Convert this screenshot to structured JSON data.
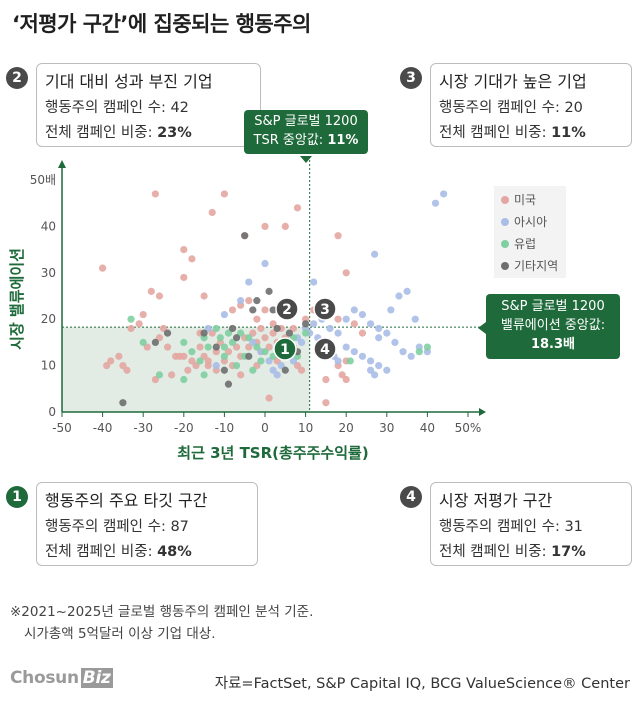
{
  "title": "‘저평가 구간’에 집중되는 행동주의",
  "boxes": {
    "b2": {
      "num": "2",
      "heading": "기대 대비 성과 부진 기업",
      "count_label": "행동주의 캠페인 수: ",
      "count": "42",
      "share_label": "전체 캠페인 비중: ",
      "share": "23%"
    },
    "b3": {
      "num": "3",
      "heading": "시장 기대가 높은 기업",
      "count_label": "행동주의 캠페인 수: ",
      "count": "20",
      "share_label": "전체 캠페인 비중: ",
      "share": "11%"
    },
    "b1": {
      "num": "1",
      "heading": "행동주의 주요 타깃 구간",
      "count_label": "행동주의 캠페인 수: ",
      "count": "87",
      "share_label": "전체 캠페인 비중: ",
      "share": "48%"
    },
    "b4": {
      "num": "4",
      "heading": "시장 저평가 구간",
      "count_label": "행동주의 캠페인 수: ",
      "count": "31",
      "share_label": "전체 캠페인 비중: ",
      "share": "17%"
    }
  },
  "callout_tsr": {
    "line1": "S&P 글로벌 1200",
    "line2": "TSR 중앙값: ",
    "value": "11%"
  },
  "callout_val": {
    "line1": "S&P 글로벌 1200",
    "line2": "밸류에이션 중앙값:",
    "value": "18.3배"
  },
  "note_line1": "※2021~2025년 글로벌 행동주의 캠페인 분석 기준.",
  "note_line2": "시가총액 5억달러 이상 기업 대상.",
  "logo_text": "Chosun",
  "logo_biz": "Biz",
  "source": "자료=FactSet, S&P Capital IQ, BCG ValueScience® Center",
  "colors": {
    "us": "#e3a6a1",
    "asia": "#a9bde6",
    "europe": "#7fcfa1",
    "other": "#6e6e6e",
    "accent": "#1f6a3a"
  },
  "chart_data": {
    "type": "scatter",
    "xlabel": "최근 3년 TSR(총주주수익률)",
    "ylabel": "시장 밸류에이션",
    "xlim": [
      -50,
      50
    ],
    "ylim": [
      0,
      50
    ],
    "x_ticks": [
      "-50",
      "-40",
      "-30",
      "-20",
      "-10",
      "0",
      "10",
      "20",
      "30",
      "40",
      "50%"
    ],
    "y_ticks": [
      "0",
      "10",
      "20",
      "30",
      "40",
      "50배"
    ],
    "median_x": 11,
    "median_y": 18.3,
    "quadrant_markers": [
      "1",
      "2",
      "3",
      "4"
    ],
    "series": [
      {
        "name": "미국",
        "color_key": "us",
        "points": [
          [
            -27,
            47
          ],
          [
            -20,
            35
          ],
          [
            -18,
            33
          ],
          [
            -20,
            29
          ],
          [
            -15,
            25
          ],
          [
            -13,
            43
          ],
          [
            -10,
            47
          ],
          [
            -5,
            38
          ],
          [
            0,
            40
          ],
          [
            5,
            40
          ],
          [
            8,
            44
          ],
          [
            20,
            30
          ],
          [
            18,
            38
          ],
          [
            18,
            20
          ],
          [
            20,
            11
          ],
          [
            15,
            2
          ],
          [
            -40,
            31
          ],
          [
            -28,
            26
          ],
          [
            -26,
            25
          ],
          [
            -33,
            18
          ],
          [
            -31,
            19
          ],
          [
            -29,
            14
          ],
          [
            -26,
            16
          ],
          [
            -24,
            14
          ],
          [
            -22,
            12
          ],
          [
            -20,
            12
          ],
          [
            -18,
            11
          ],
          [
            -16,
            14
          ],
          [
            -15,
            12
          ],
          [
            -14,
            10
          ],
          [
            -13,
            17
          ],
          [
            -12,
            9
          ],
          [
            -11,
            15
          ],
          [
            -10,
            11
          ],
          [
            -9,
            13
          ],
          [
            -8,
            10
          ],
          [
            -7,
            14
          ],
          [
            -6,
            12
          ],
          [
            -5,
            16
          ],
          [
            -4,
            14
          ],
          [
            -3,
            17
          ],
          [
            -2,
            15
          ],
          [
            -1,
            13
          ],
          [
            0,
            16
          ],
          [
            1,
            14
          ],
          [
            2,
            17
          ],
          [
            3,
            15
          ],
          [
            4,
            18
          ],
          [
            5,
            16
          ],
          [
            6,
            12
          ],
          [
            7,
            14
          ],
          [
            8,
            10
          ],
          [
            9,
            9
          ],
          [
            -36,
            12
          ],
          [
            -35,
            10
          ],
          [
            -34,
            9
          ],
          [
            -38,
            11
          ],
          [
            -39,
            10
          ],
          [
            -27,
            7
          ],
          [
            -23,
            8
          ],
          [
            -17,
            10
          ],
          [
            -19,
            9
          ],
          [
            -6,
            8
          ],
          [
            -2,
            10
          ],
          [
            1,
            3
          ],
          [
            -8,
            22
          ],
          [
            -6,
            23
          ],
          [
            -4,
            24
          ],
          [
            -2,
            20
          ],
          [
            0,
            22
          ],
          [
            2,
            19
          ],
          [
            10,
            20
          ],
          [
            12,
            22
          ],
          [
            14,
            23
          ],
          [
            16,
            21
          ],
          [
            22,
            19
          ],
          [
            24,
            17
          ],
          [
            14,
            14
          ],
          [
            16,
            13
          ],
          [
            18,
            10
          ],
          [
            15,
            7
          ],
          [
            19,
            8
          ],
          [
            20,
            7
          ],
          [
            -14,
            11
          ],
          [
            -12,
            13
          ],
          [
            -16,
            17
          ],
          [
            -21,
            12
          ],
          [
            -25,
            18
          ],
          [
            -30,
            21
          ],
          [
            7,
            18
          ],
          [
            3,
            11
          ],
          [
            -1,
            18
          ]
        ]
      },
      {
        "name": "아시아",
        "color_key": "asia",
        "points": [
          [
            44,
            47
          ],
          [
            42,
            45
          ],
          [
            27,
            34
          ],
          [
            12,
            28
          ],
          [
            0,
            32
          ],
          [
            -4,
            28
          ],
          [
            -6,
            24
          ],
          [
            -10,
            21
          ],
          [
            -14,
            18
          ],
          [
            -3,
            15
          ],
          [
            -1,
            13
          ],
          [
            1,
            11
          ],
          [
            2,
            9
          ],
          [
            3,
            8
          ],
          [
            4,
            10
          ],
          [
            5,
            12
          ],
          [
            6,
            14
          ],
          [
            8,
            16
          ],
          [
            10,
            18
          ],
          [
            12,
            19
          ],
          [
            14,
            20
          ],
          [
            16,
            18
          ],
          [
            18,
            17
          ],
          [
            20,
            20
          ],
          [
            22,
            22
          ],
          [
            24,
            21
          ],
          [
            26,
            19
          ],
          [
            28,
            18
          ],
          [
            30,
            17
          ],
          [
            32,
            15
          ],
          [
            34,
            13
          ],
          [
            36,
            12
          ],
          [
            38,
            14
          ],
          [
            40,
            13
          ],
          [
            20,
            14
          ],
          [
            22,
            13
          ],
          [
            24,
            12
          ],
          [
            26,
            11
          ],
          [
            28,
            10
          ],
          [
            30,
            9
          ],
          [
            18,
            11
          ],
          [
            17,
            12
          ],
          [
            15,
            15
          ],
          [
            13,
            16
          ],
          [
            11,
            17
          ],
          [
            9,
            15
          ],
          [
            7,
            11
          ],
          [
            -12,
            10
          ],
          [
            26,
            9
          ],
          [
            27,
            8
          ],
          [
            31,
            22
          ],
          [
            33,
            25
          ],
          [
            35,
            26
          ],
          [
            37,
            20
          ],
          [
            28,
            16
          ]
        ]
      },
      {
        "name": "유럽",
        "color_key": "europe",
        "points": [
          [
            -33,
            20
          ],
          [
            -30,
            15
          ],
          [
            -20,
            15
          ],
          [
            -15,
            16
          ],
          [
            -12,
            18
          ],
          [
            -10,
            14
          ],
          [
            -8,
            15
          ],
          [
            -6,
            17
          ],
          [
            -4,
            16
          ],
          [
            -2,
            14
          ],
          [
            0,
            13
          ],
          [
            2,
            12
          ],
          [
            4,
            15
          ],
          [
            6,
            13
          ],
          [
            8,
            12
          ],
          [
            -14,
            14
          ],
          [
            -16,
            11
          ],
          [
            -26,
            8
          ],
          [
            -20,
            7
          ],
          [
            -10,
            12
          ],
          [
            -18,
            13
          ],
          [
            -9,
            17
          ],
          [
            -11,
            16
          ],
          [
            -5,
            12
          ],
          [
            -7,
            10
          ],
          [
            40,
            14
          ],
          [
            38,
            13
          ],
          [
            21,
            11
          ],
          [
            -1,
            11
          ],
          [
            -3,
            9
          ],
          [
            5,
            14
          ],
          [
            7,
            16
          ],
          [
            -15,
            8
          ],
          [
            10,
            17
          ]
        ]
      },
      {
        "name": "기타지역",
        "color_key": "other",
        "points": [
          [
            -35,
            2
          ],
          [
            -27,
            15
          ],
          [
            -15,
            17
          ],
          [
            -9,
            6
          ],
          [
            -8,
            18
          ],
          [
            -5,
            38
          ],
          [
            -3,
            22
          ],
          [
            -2,
            24
          ],
          [
            1,
            26
          ],
          [
            2,
            22
          ],
          [
            3,
            18
          ],
          [
            4,
            15
          ],
          [
            6,
            17
          ],
          [
            10,
            19
          ],
          [
            -12,
            14
          ],
          [
            -7,
            16
          ],
          [
            -24,
            17
          ],
          [
            -10,
            9
          ],
          [
            8,
            13
          ],
          [
            -4,
            12
          ],
          [
            5,
            9
          ]
        ]
      }
    ]
  }
}
